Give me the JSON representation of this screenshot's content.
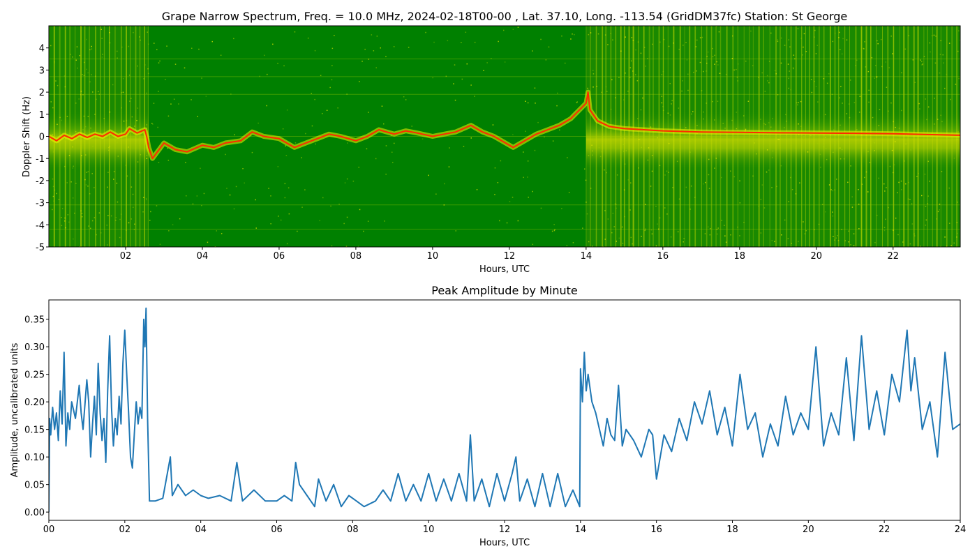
{
  "chart_data": [
    {
      "type": "heatmap",
      "title": "Grape Narrow Spectrum, Freq. = 10.0 MHz, 2024-02-18T00-00 , Lat.  37.10, Long. -113.54 (GridDM37fc) Station: St George",
      "xlabel": "Hours, UTC",
      "ylabel": "Doppler Shift (Hz)",
      "xlim": [
        0,
        23.75
      ],
      "ylim": [
        -5,
        5
      ],
      "x_ticks": [
        2,
        4,
        6,
        8,
        10,
        12,
        14,
        16,
        18,
        20,
        22
      ],
      "x_tick_labels": [
        "02",
        "04",
        "06",
        "08",
        "10",
        "12",
        "14",
        "16",
        "18",
        "20",
        "22"
      ],
      "y_ticks": [
        -5,
        -4,
        -3,
        -2,
        -1,
        0,
        1,
        2,
        3,
        4
      ],
      "y_tick_labels": [
        "-5",
        "-4",
        "-3",
        "-2",
        "-1",
        "0",
        "1",
        "2",
        "3",
        "4"
      ],
      "colors": {
        "background": "#008000",
        "mid": "#e8e800",
        "peak": "#ff2a00"
      },
      "trace": {
        "x": [
          0.0,
          0.2,
          0.4,
          0.6,
          0.8,
          1.0,
          1.2,
          1.4,
          1.6,
          1.8,
          2.0,
          2.1,
          2.3,
          2.5,
          2.55,
          2.6,
          2.7,
          3.0,
          3.3,
          3.6,
          4.0,
          4.3,
          4.6,
          5.0,
          5.3,
          5.6,
          6.0,
          6.4,
          6.7,
          7.0,
          7.3,
          7.6,
          8.0,
          8.3,
          8.6,
          9.0,
          9.3,
          9.6,
          10.0,
          10.3,
          10.6,
          11.0,
          11.3,
          11.6,
          11.9,
          12.1,
          12.4,
          12.7,
          13.0,
          13.3,
          13.6,
          14.0,
          14.05,
          14.1,
          14.3,
          14.6,
          15.0,
          15.5,
          16.0,
          17.0,
          18.0,
          19.0,
          20.0,
          21.0,
          22.0,
          23.0,
          23.75
        ],
        "y": [
          0.0,
          -0.2,
          0.05,
          -0.1,
          0.1,
          -0.05,
          0.1,
          0.0,
          0.2,
          0.0,
          0.1,
          0.35,
          0.15,
          0.3,
          0.0,
          -0.5,
          -1.0,
          -0.3,
          -0.6,
          -0.7,
          -0.4,
          -0.5,
          -0.3,
          -0.2,
          0.2,
          0.0,
          -0.1,
          -0.5,
          -0.3,
          -0.1,
          0.1,
          0.0,
          -0.2,
          0.0,
          0.3,
          0.1,
          0.25,
          0.15,
          0.0,
          0.1,
          0.2,
          0.5,
          0.2,
          0.0,
          -0.3,
          -0.5,
          -0.2,
          0.1,
          0.3,
          0.5,
          0.8,
          1.5,
          2.0,
          1.2,
          0.7,
          0.45,
          0.35,
          0.3,
          0.25,
          0.2,
          0.18,
          0.16,
          0.15,
          0.14,
          0.12,
          0.08,
          0.05
        ]
      },
      "strong_segments": [
        [
          0,
          2.6
        ],
        [
          14.0,
          23.75
        ]
      ]
    },
    {
      "type": "line",
      "title": "Peak Amplitude by Minute",
      "xlabel": "Hours, UTC",
      "ylabel": "Amplitude, uncalibrated units",
      "xlim": [
        0,
        24
      ],
      "ylim": [
        -0.015,
        0.385
      ],
      "x_ticks": [
        0,
        2,
        4,
        6,
        8,
        10,
        12,
        14,
        16,
        18,
        20,
        22,
        24
      ],
      "x_tick_labels": [
        "00",
        "02",
        "04",
        "06",
        "08",
        "10",
        "12",
        "14",
        "16",
        "18",
        "20",
        "22",
        "24"
      ],
      "y_ticks": [
        0.0,
        0.05,
        0.1,
        0.15,
        0.2,
        0.25,
        0.3,
        0.35
      ],
      "y_tick_labels": [
        "0.00",
        "0.05",
        "0.10",
        "0.15",
        "0.20",
        "0.25",
        "0.30",
        "0.35"
      ],
      "line_color": "#1f77b4",
      "x": [
        0.0,
        0.02,
        0.05,
        0.1,
        0.15,
        0.2,
        0.25,
        0.3,
        0.35,
        0.4,
        0.45,
        0.5,
        0.55,
        0.6,
        0.7,
        0.8,
        0.85,
        0.9,
        1.0,
        1.05,
        1.1,
        1.15,
        1.2,
        1.25,
        1.3,
        1.35,
        1.4,
        1.45,
        1.5,
        1.55,
        1.6,
        1.65,
        1.7,
        1.75,
        1.8,
        1.85,
        1.9,
        1.95,
        2.0,
        2.05,
        2.1,
        2.15,
        2.2,
        2.25,
        2.3,
        2.35,
        2.4,
        2.45,
        2.5,
        2.53,
        2.56,
        2.6,
        2.65,
        2.8,
        3.0,
        3.2,
        3.25,
        3.4,
        3.6,
        3.8,
        4.0,
        4.2,
        4.5,
        4.8,
        4.95,
        5.1,
        5.4,
        5.7,
        6.0,
        6.2,
        6.4,
        6.5,
        6.6,
        6.8,
        7.0,
        7.1,
        7.3,
        7.5,
        7.7,
        7.9,
        8.1,
        8.3,
        8.6,
        8.8,
        9.0,
        9.2,
        9.4,
        9.6,
        9.8,
        10.0,
        10.2,
        10.4,
        10.6,
        10.8,
        11.0,
        11.1,
        11.2,
        11.4,
        11.6,
        11.8,
        12.0,
        12.2,
        12.3,
        12.4,
        12.6,
        12.8,
        13.0,
        13.2,
        13.4,
        13.6,
        13.8,
        13.98,
        14.0,
        14.05,
        14.1,
        14.15,
        14.2,
        14.3,
        14.4,
        14.5,
        14.6,
        14.7,
        14.8,
        14.9,
        15.0,
        15.1,
        15.2,
        15.4,
        15.6,
        15.8,
        15.9,
        16.0,
        16.2,
        16.4,
        16.6,
        16.8,
        17.0,
        17.2,
        17.4,
        17.6,
        17.8,
        18.0,
        18.2,
        18.4,
        18.6,
        18.8,
        19.0,
        19.2,
        19.4,
        19.6,
        19.8,
        20.0,
        20.2,
        20.4,
        20.6,
        20.8,
        21.0,
        21.2,
        21.4,
        21.6,
        21.8,
        22.0,
        22.2,
        22.4,
        22.6,
        22.7,
        22.8,
        23.0,
        23.2,
        23.4,
        23.6,
        23.8,
        24.0
      ],
      "y": [
        0.0,
        0.17,
        0.14,
        0.19,
        0.15,
        0.18,
        0.13,
        0.22,
        0.16,
        0.29,
        0.12,
        0.18,
        0.15,
        0.2,
        0.17,
        0.23,
        0.18,
        0.15,
        0.24,
        0.2,
        0.1,
        0.16,
        0.21,
        0.14,
        0.27,
        0.18,
        0.13,
        0.17,
        0.09,
        0.22,
        0.32,
        0.19,
        0.12,
        0.17,
        0.14,
        0.21,
        0.16,
        0.27,
        0.33,
        0.25,
        0.18,
        0.1,
        0.08,
        0.14,
        0.2,
        0.16,
        0.19,
        0.17,
        0.35,
        0.3,
        0.37,
        0.17,
        0.02,
        0.02,
        0.025,
        0.1,
        0.03,
        0.05,
        0.03,
        0.04,
        0.03,
        0.025,
        0.03,
        0.02,
        0.09,
        0.02,
        0.04,
        0.02,
        0.02,
        0.03,
        0.02,
        0.09,
        0.05,
        0.03,
        0.01,
        0.06,
        0.02,
        0.05,
        0.01,
        0.03,
        0.02,
        0.01,
        0.02,
        0.04,
        0.02,
        0.07,
        0.02,
        0.05,
        0.02,
        0.07,
        0.02,
        0.06,
        0.02,
        0.07,
        0.02,
        0.14,
        0.02,
        0.06,
        0.01,
        0.07,
        0.02,
        0.07,
        0.1,
        0.02,
        0.06,
        0.01,
        0.07,
        0.01,
        0.07,
        0.01,
        0.04,
        0.01,
        0.26,
        0.2,
        0.29,
        0.22,
        0.25,
        0.2,
        0.18,
        0.15,
        0.12,
        0.17,
        0.14,
        0.13,
        0.23,
        0.12,
        0.15,
        0.13,
        0.1,
        0.15,
        0.14,
        0.06,
        0.14,
        0.11,
        0.17,
        0.13,
        0.2,
        0.16,
        0.22,
        0.14,
        0.19,
        0.12,
        0.25,
        0.15,
        0.18,
        0.1,
        0.16,
        0.12,
        0.21,
        0.14,
        0.18,
        0.15,
        0.3,
        0.12,
        0.18,
        0.14,
        0.28,
        0.13,
        0.32,
        0.15,
        0.22,
        0.14,
        0.25,
        0.2,
        0.33,
        0.22,
        0.28,
        0.15,
        0.2,
        0.1,
        0.29,
        0.15,
        0.16
      ]
    }
  ]
}
